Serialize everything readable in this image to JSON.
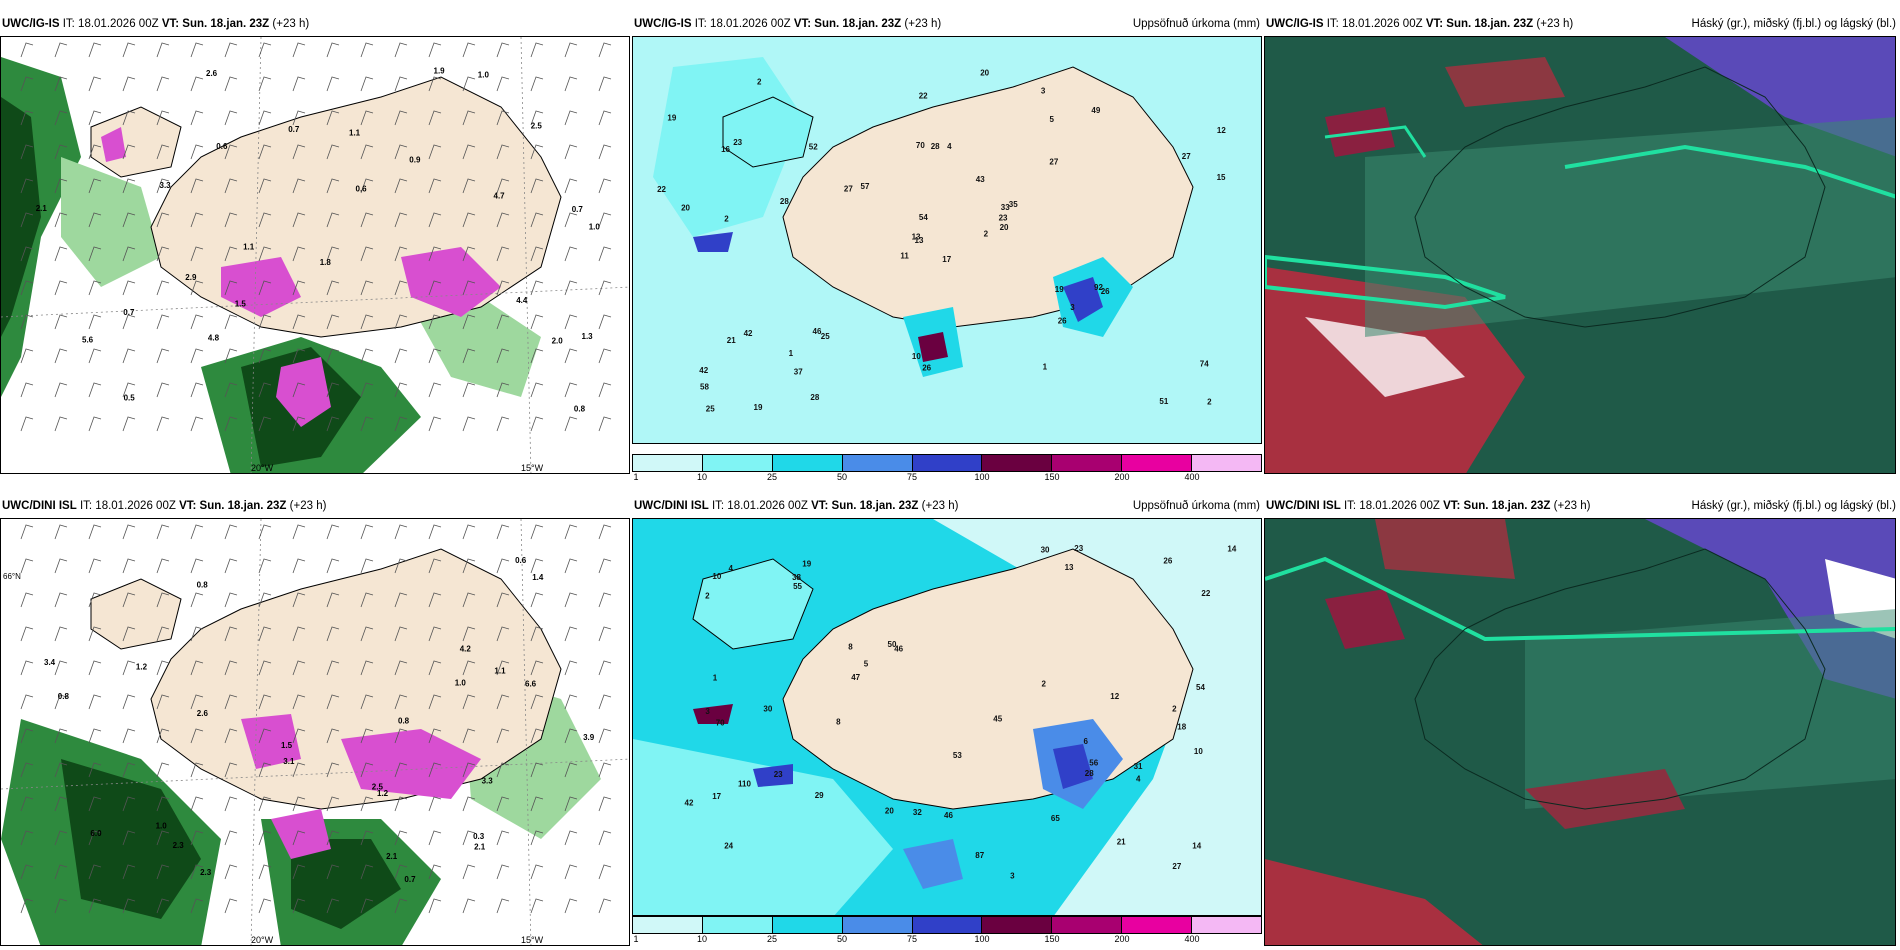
{
  "rows": [
    {
      "model": "UWC/IG-IS",
      "panels": [
        {
          "init_label": "IT:",
          "init": "18.01.2026 00Z",
          "valid_label": "VT:",
          "valid": "Sun. 18.jan. 23Z",
          "lead": "(+23 h)",
          "right_title": ""
        },
        {
          "init_label": "IT:",
          "init": "18.01.2026 00Z",
          "valid_label": "VT:",
          "valid": "Sun. 18.jan. 23Z",
          "lead": "(+23 h)",
          "right_title": "Uppsöfnuð úrkoma (mm)"
        },
        {
          "init_label": "IT:",
          "init": "18.01.2026 00Z",
          "valid_label": "VT:",
          "valid": "Sun. 18.jan. 23Z",
          "lead": "(+23 h)",
          "right_title": "Háský (gr.), miðský (fj.bl.) og lágský (bl.)"
        }
      ],
      "accum_labels": [
        "17",
        "16",
        "13",
        "42",
        "33",
        "25",
        "3",
        "4",
        "5",
        "2",
        "2",
        "2",
        "2",
        "12",
        "11",
        "27",
        "19",
        "70",
        "43",
        "42",
        "57",
        "58",
        "37",
        "28",
        "35",
        "26",
        "23",
        "22",
        "20",
        "19",
        "15",
        "13",
        "10",
        "54",
        "52",
        "49",
        "46",
        "51",
        "74",
        "92",
        "20",
        "27",
        "28",
        "26",
        "28",
        "22",
        "23",
        "25",
        "26",
        "20",
        "21",
        "27",
        "19",
        "3",
        "1",
        "1"
      ],
      "precip_labels": [
        "0.6",
        "0.7",
        "0.9",
        "1.0",
        "1.1",
        "1.3",
        "1.5",
        "1.9",
        "2.0",
        "2.5",
        "3.3",
        "4.4",
        "4.7",
        "4.8",
        "5.6",
        "1.8",
        "2.9",
        "2.1",
        "2.6",
        "0.7",
        "0.8",
        "1.1",
        "0.5",
        "0.7",
        "0.6",
        "1.0"
      ]
    },
    {
      "model": "UWC/DINI ISL",
      "panels": [
        {
          "init_label": "IT:",
          "init": "18.01.2026 00Z",
          "valid_label": "VT:",
          "valid": "Sun. 18.jan. 23Z",
          "lead": "(+23 h)",
          "right_title": ""
        },
        {
          "init_label": "IT:",
          "init": "18.01.2026 00Z",
          "valid_label": "VT:",
          "valid": "Sun. 18.jan. 23Z",
          "lead": "(+23 h)",
          "right_title": "Uppsöfnuð úrkoma (mm)"
        },
        {
          "init_label": "IT:",
          "init": "18.01.2026 00Z",
          "valid_label": "VT:",
          "valid": "Sun. 18.jan. 23Z",
          "lead": "(+23 h)",
          "right_title": "Háský (gr.), miðský (fj.bl.) og lágský (bl.)"
        }
      ],
      "accum_labels": [
        "6",
        "18",
        "24",
        "19",
        "46",
        "21",
        "17",
        "13",
        "8",
        "3",
        "2",
        "3",
        "10",
        "14",
        "20",
        "54",
        "53",
        "45",
        "50",
        "23",
        "14",
        "26",
        "47",
        "10",
        "30",
        "38",
        "56",
        "70",
        "55",
        "12",
        "87",
        "65",
        "5",
        "8",
        "2",
        "4",
        "28",
        "30",
        "46",
        "110",
        "22",
        "23",
        "27",
        "32",
        "31",
        "29",
        "42",
        "4",
        "2",
        "1"
      ],
      "precip_labels": [
        "0.7",
        "0.8",
        "1.0",
        "1.2",
        "1.1",
        "2.1",
        "3.9",
        "2.6",
        "3.1",
        "2.3",
        "6.0",
        "3.4",
        "1.5",
        "2.5",
        "1.0",
        "0.6",
        "0.8",
        "1.4",
        "3.3",
        "6.6",
        "0.3",
        "1.2",
        "2.3",
        "2.1",
        "0.8",
        "4.2"
      ]
    }
  ],
  "map_labels": {
    "lat_66": "66°N",
    "lon_20": "20°W",
    "lon_15": "15°W"
  },
  "colorbar": {
    "ticks": [
      "1",
      "10",
      "25",
      "50",
      "75",
      "100",
      "150",
      "200",
      "400"
    ],
    "colors": [
      "#d0f8f8",
      "#80f4f4",
      "#20d8e8",
      "#4a8ce8",
      "#3040c8",
      "#6a0040",
      "#a80070",
      "#e800a0",
      "#f4b8f4"
    ]
  },
  "colors": {
    "land": "#f5e6d3",
    "sea_white": "#ffffff",
    "precip_green_dark": "#0f4a18",
    "precip_green": "#2e8a3e",
    "precip_green_light": "#9ed89e",
    "precip_magenta": "#d84fd0",
    "cloud_dark_green": "#1f5a48",
    "cloud_mid_green": "#3a8a70",
    "cloud_cyan": "#20e0a0",
    "cloud_red": "#a83040",
    "cloud_blue": "#5a4ab8"
  }
}
